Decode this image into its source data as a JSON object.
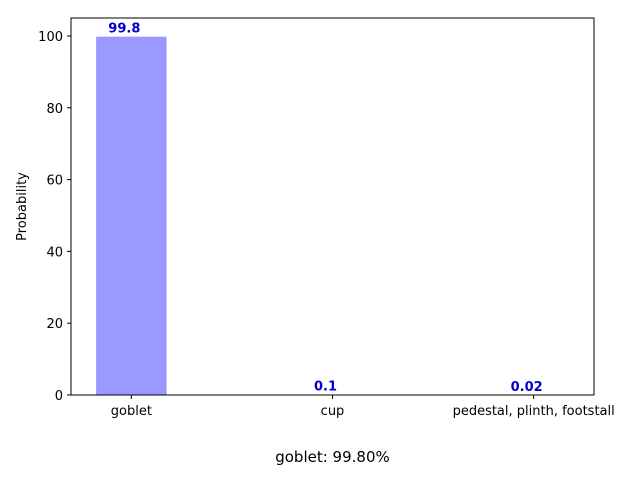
{
  "chart_data": {
    "type": "bar",
    "categories": [
      "goblet",
      "cup",
      "pedestal, plinth, footstall"
    ],
    "values": [
      99.8,
      0.1,
      0.02
    ],
    "data_labels": [
      "99.8",
      "0.1",
      "0.02"
    ],
    "title": "",
    "xlabel": "goblet: 99.80%",
    "ylabel": "Probability",
    "ylim": [
      0,
      105
    ],
    "yticks": [
      0,
      20,
      40,
      60,
      80,
      100
    ],
    "grid": false,
    "legend": "none",
    "colors": {
      "bar": "#9999ff",
      "data_label": "#0000cc",
      "axis": "#000000",
      "text": "#000000"
    }
  }
}
